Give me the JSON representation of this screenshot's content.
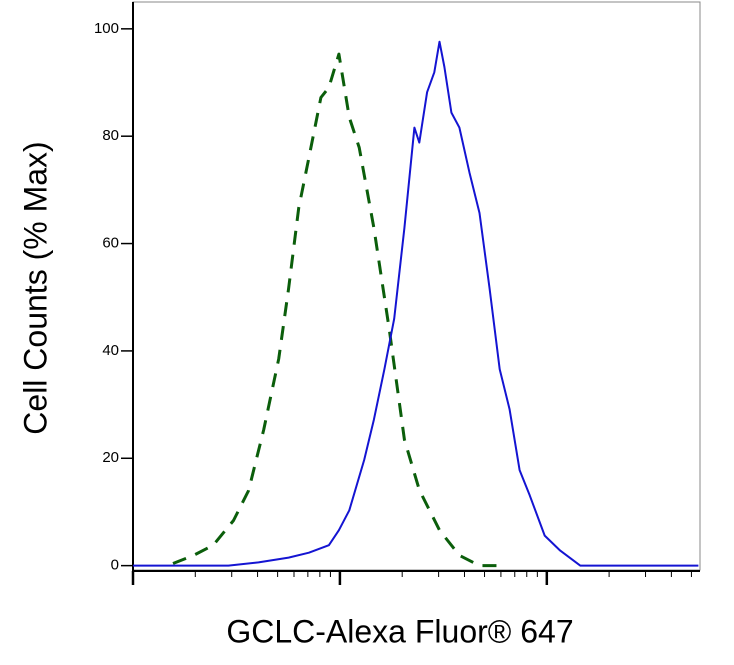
{
  "chart_data": {
    "type": "line",
    "x_label": "GCLC-Alexa Fluor® 647",
    "y_label": "Cell Counts (% Max)",
    "xscale": "log",
    "xlim": [
      1,
      550
    ],
    "xticks": [
      1,
      10,
      100
    ],
    "xminorticks": [
      2,
      3,
      4,
      5,
      6,
      7,
      8,
      9,
      20,
      30,
      40,
      50,
      60,
      70,
      80,
      90,
      200,
      300,
      400,
      500
    ],
    "ylim": [
      -1,
      105
    ],
    "yticks": [
      0,
      20,
      40,
      60,
      80,
      100
    ],
    "series": [
      {
        "color": "#0b5e0b",
        "dashed": true,
        "x": [
          1.56,
          1.96,
          2.44,
          3.06,
          3.62,
          4.28,
          5.06,
          5.65,
          6.32,
          7.08,
          8.09,
          8.85,
          9.89,
          11.1,
          12.4,
          14.6,
          17.3,
          20.5,
          24.2,
          30.3,
          37.8,
          47.3,
          59.2
        ],
        "values": [
          0.4,
          1.9,
          3.8,
          8.4,
          14,
          25.3,
          38.5,
          51.6,
          66.6,
          76,
          87.2,
          89.1,
          95.3,
          83.5,
          77.9,
          62.9,
          44.1,
          23.5,
          14.1,
          6.6,
          1.9,
          0,
          0
        ]
      },
      {
        "color": "#1414d2",
        "dashed": false,
        "x": [
          1,
          2.89,
          4.04,
          5.65,
          7.08,
          8.85,
          9.89,
          11.1,
          13.1,
          14.6,
          16.4,
          18.3,
          20.5,
          22.9,
          24.2,
          26.4,
          28.6,
          30.3,
          32.0,
          34.6,
          37.8,
          42.3,
          47.3,
          52.9,
          59.2,
          66.1,
          73.9,
          82.7,
          97.7,
          116,
          145,
          181,
          540
        ],
        "values": [
          0,
          0,
          0.6,
          1.5,
          2.4,
          3.8,
          6.6,
          10.3,
          19.7,
          27.2,
          36.6,
          46,
          62.9,
          81.6,
          78.8,
          88.2,
          91.9,
          97.6,
          92.9,
          84.4,
          81.6,
          73.2,
          65.7,
          51.6,
          36.6,
          29.1,
          17.8,
          13.1,
          5.6,
          2.8,
          0,
          0,
          0
        ]
      }
    ]
  }
}
